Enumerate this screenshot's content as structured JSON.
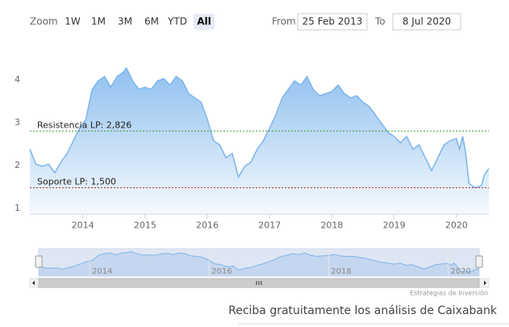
{
  "chart_data": {
    "type": "area",
    "range_selector": {
      "zoom_label": "Zoom",
      "buttons": [
        "1W",
        "1M",
        "3M",
        "6M",
        "YTD",
        "All"
      ],
      "selected": 5,
      "from_label": "From",
      "from": "25 Feb 2013",
      "to_label": "To",
      "to": "8 Jul 2020"
    },
    "x": [
      2013.15,
      2013.25,
      2013.35,
      2013.45,
      2013.55,
      2013.65,
      2013.75,
      2013.85,
      2013.95,
      2014.05,
      2014.15,
      2014.25,
      2014.35,
      2014.45,
      2014.55,
      2014.65,
      2014.7,
      2014.8,
      2014.9,
      2015.0,
      2015.1,
      2015.2,
      2015.3,
      2015.4,
      2015.5,
      2015.6,
      2015.7,
      2015.8,
      2015.9,
      2016.0,
      2016.1,
      2016.2,
      2016.3,
      2016.4,
      2016.5,
      2016.6,
      2016.7,
      2016.8,
      2016.9,
      2017.0,
      2017.1,
      2017.2,
      2017.3,
      2017.4,
      2017.5,
      2017.6,
      2017.7,
      2017.8,
      2017.9,
      2018.0,
      2018.1,
      2018.2,
      2018.3,
      2018.4,
      2018.5,
      2018.6,
      2018.7,
      2018.8,
      2018.9,
      2019.0,
      2019.1,
      2019.2,
      2019.3,
      2019.4,
      2019.5,
      2019.6,
      2019.7,
      2019.8,
      2019.9,
      2020.0,
      2020.05,
      2020.1,
      2020.15,
      2020.2,
      2020.3,
      2020.4,
      2020.45,
      2020.52
    ],
    "values": [
      2.4,
      2.05,
      2.0,
      2.05,
      1.85,
      2.1,
      2.3,
      2.6,
      2.9,
      3.1,
      3.8,
      4.0,
      4.1,
      3.85,
      4.1,
      4.2,
      4.3,
      4.0,
      3.8,
      3.85,
      3.8,
      4.0,
      4.05,
      3.9,
      4.1,
      4.0,
      3.7,
      3.6,
      3.5,
      3.1,
      2.6,
      2.5,
      2.2,
      2.3,
      1.75,
      2.0,
      2.1,
      2.4,
      2.6,
      2.9,
      3.2,
      3.6,
      3.8,
      4.0,
      3.9,
      4.1,
      3.8,
      3.65,
      3.7,
      3.75,
      3.9,
      3.7,
      3.6,
      3.65,
      3.5,
      3.4,
      3.2,
      3.0,
      2.8,
      2.7,
      2.55,
      2.7,
      2.4,
      2.5,
      2.2,
      1.9,
      2.2,
      2.5,
      2.6,
      2.65,
      2.4,
      2.7,
      2.3,
      1.6,
      1.5,
      1.55,
      1.8,
      1.95
    ],
    "color": "#7cb5ec",
    "xlim": [
      2013.15,
      2020.52
    ],
    "xticks": [
      2014,
      2015,
      2016,
      2017,
      2018,
      2019,
      2020
    ],
    "ylim": [
      0.9,
      4.7
    ],
    "yticks": [
      1,
      2,
      3,
      4
    ],
    "plot_lines": [
      {
        "label": "Resistencia LP: 2,826",
        "value": 2.826,
        "color": "#3a9a3a"
      },
      {
        "label": "Soporte LP: 1,500",
        "value": 1.5,
        "color": "#b03030"
      }
    ],
    "navigator": {
      "xticks": [
        2014,
        2016,
        2018,
        2020
      ]
    },
    "credits": "Estrategias de Inversión",
    "footer": "Reciba gratuitamente los análisis de Caixabank"
  }
}
